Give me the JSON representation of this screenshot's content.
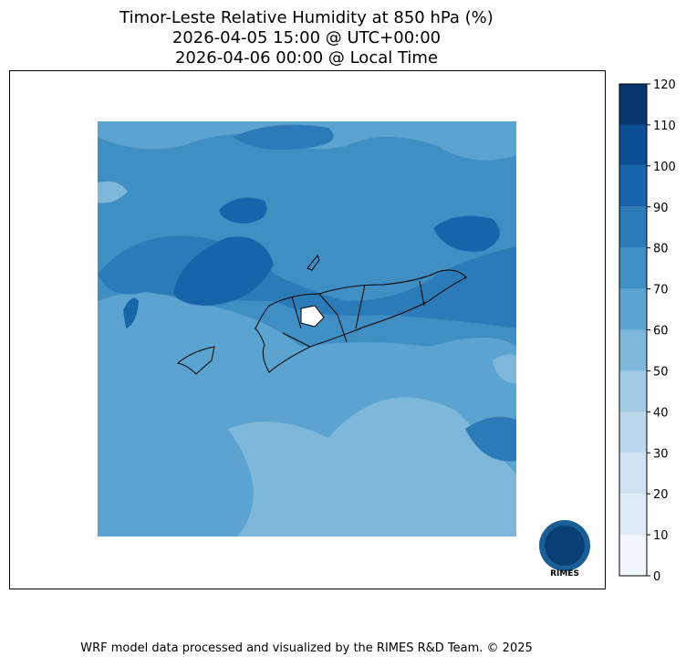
{
  "title": [
    "Timor-Leste Relative Humidity at 850 hPa (%)",
    "2026-04-05 15:00 @ UTC+00:00",
    "2026-04-06 00:00 @ Local Time"
  ],
  "colorbar": {
    "ticks": [
      0,
      10,
      20,
      30,
      40,
      50,
      60,
      70,
      80,
      90,
      100,
      110,
      120
    ],
    "colors": [
      "#f0f6fd",
      "#deebf7",
      "#cfe1f2",
      "#bcd7eb",
      "#a1cbe2",
      "#7db8da",
      "#5ba3d0",
      "#3f8fc5",
      "#2c7bb9",
      "#1864aa",
      "#0a4f96",
      "#08366f"
    ]
  },
  "logo": "RIMES",
  "footer": "WRF model data processed and visualized by the RIMES R&D Team. © 2025"
}
